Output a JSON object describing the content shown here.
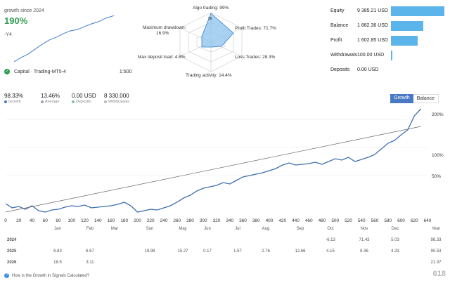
{
  "top": {
    "growth_label": "growth since 2024",
    "growth_value": "190%",
    "y_tick": "-Y4"
  },
  "radar": {
    "algo_trading": "Algo trading: 99%",
    "profit_trades": "Profit Trades: 71.7%",
    "loss_trades": "Loss Trades: 28.3%",
    "trading_activity": "Trading activity: 14.4%",
    "max_deposit_load": "Max deposit load: 4.8%",
    "max_drawdown_title": "Maximum drawdown:",
    "max_drawdown_value": "16.9%",
    "center_value": "98"
  },
  "stats": [
    {
      "label": "Equity",
      "value": "9 385.21 USD",
      "fill": 1.0
    },
    {
      "label": "Balance",
      "value": "1 882.36 USD",
      "fill": 0.6
    },
    {
      "label": "Profit",
      "value": "1 602.85 USD",
      "fill": 0.5
    },
    {
      "label": "Withdrawals",
      "value": "100.00 USD",
      "fill": 0.03
    },
    {
      "label": "Deposits",
      "value": "0.00 USD",
      "fill": 0.0
    }
  ],
  "account": {
    "name": "Capital · Trading-MT5-4",
    "leverage": "1:500"
  },
  "summary": [
    {
      "value": "98.33%",
      "label": "Growth",
      "color": "#4a79c4"
    },
    {
      "value": "13.46%",
      "label": "Average",
      "color": "#9aa4b8"
    },
    {
      "value": "0.00 USD",
      "label": "Deposits",
      "color": "#7ec0a3"
    },
    {
      "value": "8 330.000",
      "label": "Withdrawals",
      "color": "#b9b9b9"
    }
  ],
  "tabs": {
    "growth": "Growth",
    "balance": "Balance"
  },
  "chart_data": {
    "type": "line",
    "x_ticks": [
      "0",
      "20",
      "40",
      "60",
      "80",
      "100",
      "120",
      "140",
      "160",
      "180",
      "200",
      "220",
      "240",
      "260",
      "280",
      "300",
      "320",
      "340",
      "360",
      "380",
      "400",
      "420",
      "440",
      "460",
      "480",
      "500",
      "520",
      "540",
      "560",
      "580",
      "600",
      "620",
      "640"
    ],
    "months": [
      "Jan",
      "Feb",
      "Mar",
      "Sun",
      "May",
      "Jun",
      "Jul",
      "Aug",
      "Sep",
      "Oct",
      "Nov",
      "Dec",
      "Year"
    ],
    "y_ticks": [
      "200%",
      "100%",
      "50%"
    ],
    "xlim": [
      0,
      640
    ],
    "series": [
      {
        "color": "#3e6fb0",
        "x": [
          0,
          10,
          20,
          30,
          40,
          50,
          60,
          70,
          80,
          90,
          100,
          110,
          120,
          130,
          140,
          150,
          160,
          170,
          180,
          190,
          200,
          210,
          220,
          230,
          240,
          250,
          260,
          270,
          280,
          290,
          300,
          310,
          320,
          330,
          340,
          350,
          360,
          370,
          380,
          390,
          400,
          410,
          420,
          430,
          440,
          450,
          460,
          470,
          480,
          490,
          500,
          510,
          520,
          530,
          540,
          550,
          560,
          570,
          580,
          590,
          600,
          610,
          620,
          630
        ],
        "y": [
          0,
          -6,
          -4,
          -8,
          -3,
          -10,
          -12,
          -9,
          -8,
          -5,
          -3,
          -4,
          -2,
          -6,
          -5,
          -4,
          -3,
          -1,
          2,
          -3,
          -12,
          -10,
          -8,
          -9,
          -6,
          -3,
          2,
          8,
          12,
          18,
          22,
          24,
          26,
          30,
          28,
          33,
          38,
          40,
          42,
          44,
          47,
          50,
          55,
          58,
          55,
          56,
          57,
          59,
          56,
          60,
          64,
          62,
          66,
          60,
          63,
          66,
          70,
          78,
          86,
          90,
          98,
          105,
          125,
          135
        ]
      },
      {
        "color": "#666666",
        "x": [
          0,
          630
        ],
        "y": [
          -12,
          110
        ]
      }
    ]
  },
  "table": {
    "rows": [
      {
        "year": "2024",
        "cells": [
          "",
          "",
          "",
          "",
          "",
          "",
          "",
          "",
          "",
          "-6.13",
          "71.43",
          "5.03",
          "98.33"
        ]
      },
      {
        "year": "2025",
        "cells": [
          "6.83",
          "6.67",
          "",
          "19.98",
          "15.27",
          "0.17",
          "1.57",
          "2.76",
          "12.66",
          "4.15",
          "8.36",
          "4.33",
          "90.53"
        ]
      },
      {
        "year": "2026",
        "cells": [
          "18.5",
          "3.11",
          "",
          "",
          "",
          "",
          "",
          "",
          "",
          "",
          "",
          "",
          "21.37"
        ]
      }
    ]
  },
  "footer": {
    "help_text": "How is the Growth in Signals Calculated?",
    "watermark": "618"
  }
}
